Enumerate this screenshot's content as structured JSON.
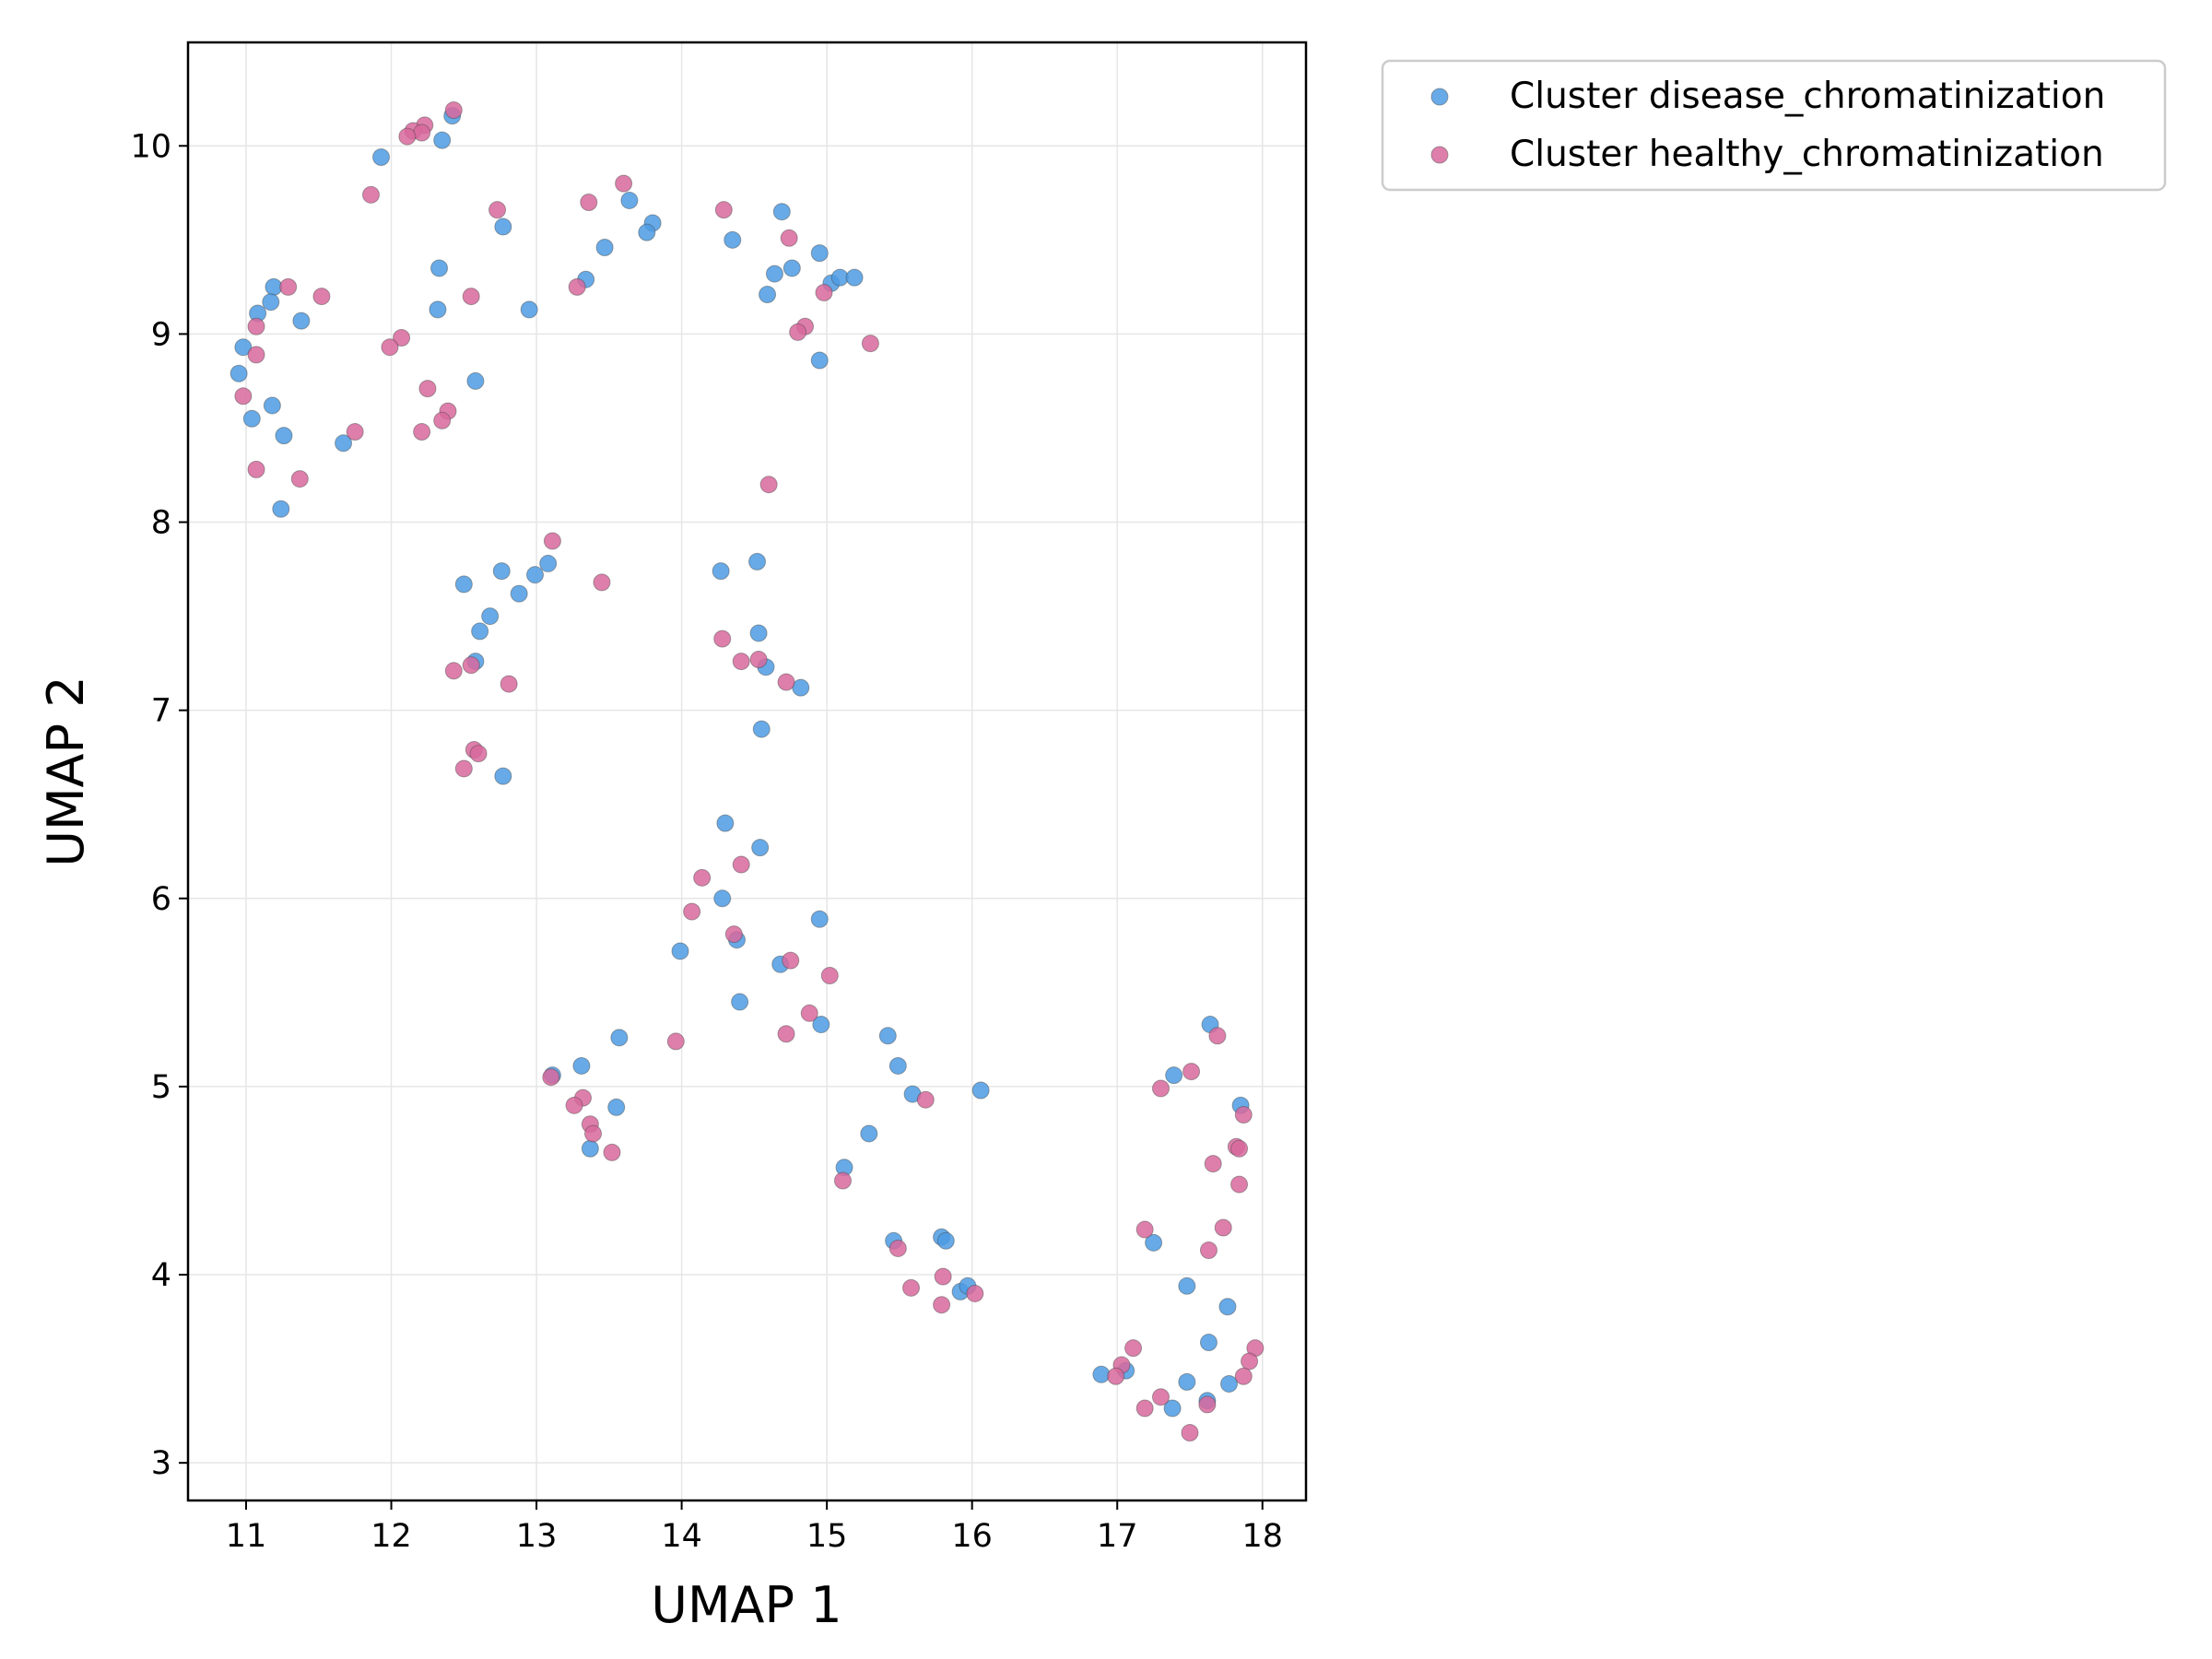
{
  "chart_data": {
    "type": "scatter",
    "xlabel": "UMAP 1",
    "ylabel": "UMAP 2",
    "xlim": [
      10.6,
      18.3
    ],
    "ylim": [
      2.8,
      10.55
    ],
    "xticks": [
      11,
      12,
      13,
      14,
      15,
      16,
      17,
      18
    ],
    "yticks": [
      3,
      4,
      5,
      6,
      7,
      8,
      9,
      10
    ],
    "grid": true,
    "legend_position": "outside top-right",
    "series": [
      {
        "name": "Cluster disease_chromatinization",
        "color": "#4c9be3",
        "points": [
          [
            11.93,
            9.94
          ],
          [
            12.35,
            10.03
          ],
          [
            12.42,
            10.16
          ],
          [
            11.19,
            9.25
          ],
          [
            11.17,
            9.17
          ],
          [
            11.08,
            9.11
          ],
          [
            11.38,
            9.07
          ],
          [
            10.98,
            8.93
          ],
          [
            10.95,
            8.79
          ],
          [
            11.18,
            8.62
          ],
          [
            11.04,
            8.55
          ],
          [
            11.26,
            8.46
          ],
          [
            11.67,
            8.42
          ],
          [
            11.24,
            8.07
          ],
          [
            12.33,
            9.35
          ],
          [
            12.32,
            9.13
          ],
          [
            12.58,
            8.75
          ],
          [
            12.77,
            9.57
          ],
          [
            12.95,
            9.13
          ],
          [
            13.34,
            9.29
          ],
          [
            13.47,
            9.46
          ],
          [
            13.64,
            9.71
          ],
          [
            13.8,
            9.59
          ],
          [
            13.76,
            9.54
          ],
          [
            14.35,
            9.5
          ],
          [
            14.69,
            9.65
          ],
          [
            14.95,
            9.43
          ],
          [
            14.64,
            9.32
          ],
          [
            14.76,
            9.35
          ],
          [
            14.59,
            9.21
          ],
          [
            15.03,
            9.27
          ],
          [
            15.09,
            9.3
          ],
          [
            15.19,
            9.3
          ],
          [
            14.95,
            8.86
          ],
          [
            12.5,
            7.67
          ],
          [
            12.76,
            7.74
          ],
          [
            12.99,
            7.72
          ],
          [
            13.08,
            7.78
          ],
          [
            12.88,
            7.62
          ],
          [
            12.68,
            7.5
          ],
          [
            12.61,
            7.42
          ],
          [
            12.58,
            7.26
          ],
          [
            12.77,
            6.65
          ],
          [
            14.27,
            7.74
          ],
          [
            14.52,
            7.79
          ],
          [
            14.53,
            7.41
          ],
          [
            14.58,
            7.23
          ],
          [
            14.82,
            7.12
          ],
          [
            14.55,
            6.9
          ],
          [
            14.3,
            6.4
          ],
          [
            14.54,
            6.27
          ],
          [
            14.28,
            6.0
          ],
          [
            14.38,
            5.78
          ],
          [
            13.99,
            5.72
          ],
          [
            14.95,
            5.89
          ],
          [
            14.68,
            5.65
          ],
          [
            14.4,
            5.45
          ],
          [
            14.96,
            5.33
          ],
          [
            15.42,
            5.27
          ],
          [
            15.49,
            5.11
          ],
          [
            15.59,
            4.96
          ],
          [
            16.06,
            4.98
          ],
          [
            15.29,
            4.75
          ],
          [
            15.12,
            4.57
          ],
          [
            15.46,
            4.18
          ],
          [
            15.79,
            4.2
          ],
          [
            15.82,
            4.18
          ],
          [
            15.92,
            3.91
          ],
          [
            15.97,
            3.94
          ],
          [
            13.11,
            5.06
          ],
          [
            13.31,
            5.11
          ],
          [
            13.57,
            5.26
          ],
          [
            13.55,
            4.89
          ],
          [
            13.37,
            4.67
          ],
          [
            17.64,
            5.33
          ],
          [
            17.39,
            5.06
          ],
          [
            17.85,
            4.9
          ],
          [
            17.25,
            4.17
          ],
          [
            17.48,
            3.94
          ],
          [
            17.76,
            3.83
          ],
          [
            17.63,
            3.64
          ],
          [
            16.89,
            3.47
          ],
          [
            17.06,
            3.49
          ],
          [
            17.48,
            3.43
          ],
          [
            17.77,
            3.42
          ],
          [
            17.62,
            3.33
          ],
          [
            17.38,
            3.29
          ]
        ]
      },
      {
        "name": "Cluster healthy_chromatinization",
        "color": "#d8689c",
        "points": [
          [
            12.43,
            10.19
          ],
          [
            12.23,
            10.11
          ],
          [
            12.15,
            10.08
          ],
          [
            12.21,
            10.07
          ],
          [
            12.11,
            10.05
          ],
          [
            11.86,
            9.74
          ],
          [
            12.73,
            9.66
          ],
          [
            13.36,
            9.7
          ],
          [
            13.6,
            9.8
          ],
          [
            11.29,
            9.25
          ],
          [
            11.52,
            9.2
          ],
          [
            12.55,
            9.2
          ],
          [
            13.28,
            9.25
          ],
          [
            11.07,
            9.04
          ],
          [
            11.07,
            8.89
          ],
          [
            10.98,
            8.67
          ],
          [
            12.07,
            8.98
          ],
          [
            11.99,
            8.93
          ],
          [
            12.25,
            8.71
          ],
          [
            12.39,
            8.59
          ],
          [
            12.35,
            8.54
          ],
          [
            12.21,
            8.48
          ],
          [
            11.75,
            8.48
          ],
          [
            11.07,
            8.28
          ],
          [
            11.37,
            8.23
          ],
          [
            14.29,
            9.66
          ],
          [
            14.74,
            9.51
          ],
          [
            14.98,
            9.22
          ],
          [
            14.85,
            9.04
          ],
          [
            14.8,
            9.01
          ],
          [
            15.3,
            8.95
          ],
          [
            14.6,
            8.2
          ],
          [
            13.11,
            7.9
          ],
          [
            13.45,
            7.68
          ],
          [
            12.43,
            7.21
          ],
          [
            12.55,
            7.24
          ],
          [
            12.81,
            7.14
          ],
          [
            12.57,
            6.79
          ],
          [
            12.6,
            6.77
          ],
          [
            12.5,
            6.69
          ],
          [
            14.28,
            7.38
          ],
          [
            14.41,
            7.26
          ],
          [
            14.53,
            7.27
          ],
          [
            14.72,
            7.15
          ],
          [
            14.14,
            6.11
          ],
          [
            14.41,
            6.18
          ],
          [
            14.07,
            5.93
          ],
          [
            14.36,
            5.81
          ],
          [
            14.75,
            5.67
          ],
          [
            15.02,
            5.59
          ],
          [
            14.88,
            5.39
          ],
          [
            14.72,
            5.28
          ],
          [
            13.96,
            5.24
          ],
          [
            13.1,
            5.05
          ],
          [
            13.32,
            4.94
          ],
          [
            13.26,
            4.9
          ],
          [
            13.37,
            4.8
          ],
          [
            13.39,
            4.75
          ],
          [
            13.52,
            4.65
          ],
          [
            15.68,
            4.93
          ],
          [
            15.11,
            4.5
          ],
          [
            15.49,
            4.14
          ],
          [
            15.8,
            3.99
          ],
          [
            15.58,
            3.93
          ],
          [
            16.02,
            3.9
          ],
          [
            15.79,
            3.84
          ],
          [
            17.69,
            5.27
          ],
          [
            17.51,
            5.08
          ],
          [
            17.3,
            4.99
          ],
          [
            17.82,
            4.68
          ],
          [
            17.84,
            4.67
          ],
          [
            17.87,
            4.85
          ],
          [
            17.66,
            4.59
          ],
          [
            17.84,
            4.48
          ],
          [
            17.19,
            4.24
          ],
          [
            17.73,
            4.25
          ],
          [
            17.63,
            4.13
          ],
          [
            17.11,
            3.61
          ],
          [
            17.95,
            3.61
          ],
          [
            17.03,
            3.52
          ],
          [
            17.91,
            3.54
          ],
          [
            16.99,
            3.46
          ],
          [
            17.87,
            3.46
          ],
          [
            17.3,
            3.35
          ],
          [
            17.62,
            3.31
          ],
          [
            17.19,
            3.29
          ],
          [
            17.5,
            3.16
          ]
        ]
      }
    ]
  }
}
